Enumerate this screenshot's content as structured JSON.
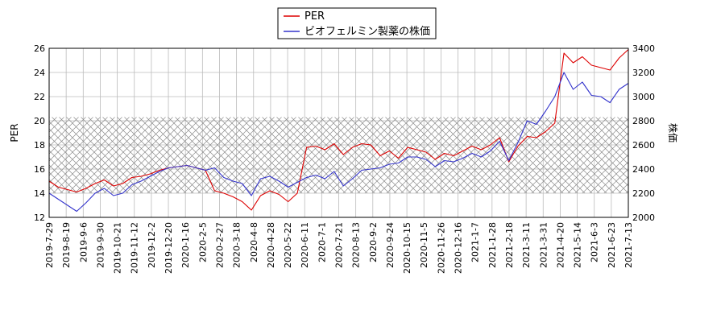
{
  "chart_data": {
    "type": "line",
    "title": "",
    "xlabel": "",
    "ylabel_left": "PER",
    "ylabel_right": "株価",
    "ylim_left": [
      12,
      26
    ],
    "ylim_right": [
      2000,
      3400
    ],
    "yticks_left": [
      "12",
      "14",
      "16",
      "18",
      "20",
      "22",
      "24",
      "26"
    ],
    "yticks_right": [
      "2000",
      "2200",
      "2400",
      "2600",
      "2800",
      "3000",
      "3200",
      "3400"
    ],
    "x_tick_labels": [
      "2019-7-29",
      "2019-8-19",
      "2019-9-6",
      "2019-9-30",
      "2019-10-21",
      "2019-11-12",
      "2019-12-2",
      "2019-12-20",
      "2020-1-16",
      "2020-2-5",
      "2020-2-27",
      "2020-3-18",
      "2020-4-8",
      "2020-4-28",
      "2020-5-22",
      "2020-6-11",
      "2020-7-1",
      "2020-7-21",
      "2020-8-13",
      "2020-9-2",
      "2020-9-24",
      "2020-10-15",
      "2020-11-5",
      "2020-11-26",
      "2020-12-16",
      "2021-1-7",
      "2021-1-28",
      "2021-2-18",
      "2021-3-11",
      "2021-3-31",
      "2021-4-20",
      "2021-5-14",
      "2021-6-3",
      "2021-6-23",
      "2021-7-13"
    ],
    "grid": true,
    "legend_position": "top-center",
    "shaded_band_right_axis": [
      2200,
      2830
    ],
    "series": [
      {
        "name": "PER",
        "axis": "left",
        "color": "#dd0000",
        "values": [
          15.0,
          14.5,
          14.3,
          14.1,
          14.4,
          14.8,
          15.1,
          14.6,
          14.8,
          15.3,
          15.4,
          15.6,
          15.9,
          16.1,
          16.2,
          16.3,
          16.1,
          15.9,
          14.2,
          14.0,
          13.7,
          13.3,
          12.6,
          13.8,
          14.2,
          13.9,
          13.3,
          14.0,
          17.8,
          17.9,
          17.6,
          18.1,
          17.2,
          17.8,
          18.1,
          18.0,
          17.1,
          17.5,
          16.9,
          17.8,
          17.6,
          17.4,
          16.8,
          17.3,
          17.1,
          17.5,
          17.9,
          17.6,
          18.0,
          18.6,
          16.6,
          17.9,
          18.7,
          18.6,
          19.1,
          19.8,
          25.6,
          24.8,
          25.3,
          24.6,
          24.4,
          24.2,
          25.2,
          25.9
        ]
      },
      {
        "name": "ビオフェルミン製薬の株価",
        "axis": "right",
        "color": "#3333cc",
        "values": [
          2200,
          2150,
          2100,
          2050,
          2120,
          2200,
          2240,
          2180,
          2200,
          2270,
          2300,
          2340,
          2380,
          2410,
          2420,
          2430,
          2410,
          2390,
          2410,
          2330,
          2300,
          2280,
          2180,
          2320,
          2340,
          2300,
          2250,
          2290,
          2330,
          2350,
          2320,
          2380,
          2260,
          2320,
          2390,
          2400,
          2410,
          2440,
          2450,
          2500,
          2500,
          2480,
          2420,
          2470,
          2460,
          2490,
          2530,
          2500,
          2550,
          2630,
          2470,
          2620,
          2800,
          2770,
          2880,
          3000,
          3200,
          3060,
          3120,
          3010,
          3000,
          2950,
          3060,
          3110
        ]
      }
    ]
  }
}
